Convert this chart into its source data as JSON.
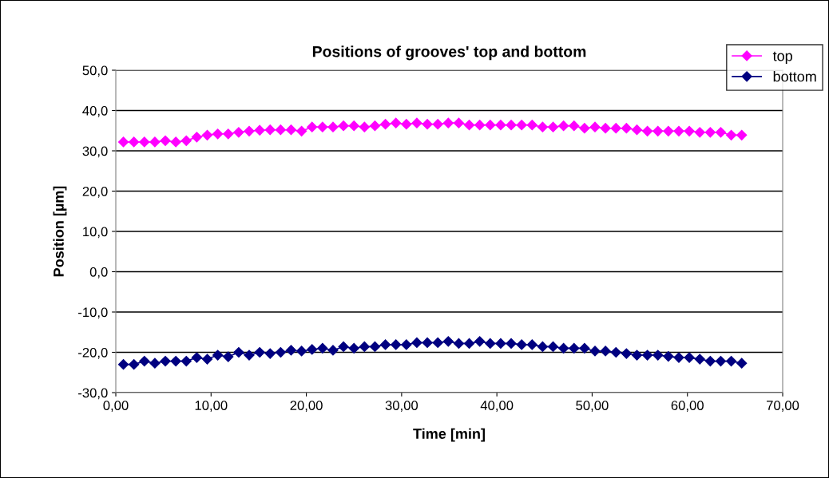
{
  "chart_data": {
    "type": "line",
    "title": "Positions of grooves' top and bottom",
    "xlabel": "Time [min]",
    "ylabel": "Position [µm]",
    "x": [
      0.8,
      1.9,
      3.0,
      4.1,
      5.2,
      6.3,
      7.4,
      8.5,
      9.6,
      10.7,
      11.8,
      12.9,
      14.0,
      15.1,
      16.2,
      17.3,
      18.4,
      19.5,
      20.6,
      21.7,
      22.8,
      23.9,
      25.0,
      26.1,
      27.2,
      28.3,
      29.4,
      30.5,
      31.6,
      32.7,
      33.8,
      34.9,
      36.0,
      37.1,
      38.2,
      39.3,
      40.4,
      41.5,
      42.6,
      43.7,
      44.8,
      45.9,
      47.0,
      48.1,
      49.2,
      50.3,
      51.4,
      52.5,
      53.6,
      54.7,
      55.8,
      56.9,
      58.0,
      59.1,
      60.2,
      61.3,
      62.4,
      63.5,
      64.6,
      65.7
    ],
    "series": [
      {
        "name": "top",
        "color": "#ff00ff",
        "values": [
          32.2,
          32.2,
          32.2,
          32.2,
          32.5,
          32.2,
          32.5,
          33.4,
          33.9,
          34.2,
          34.2,
          34.6,
          34.9,
          35.1,
          35.2,
          35.2,
          35.2,
          34.9,
          35.9,
          35.9,
          35.9,
          36.2,
          36.2,
          35.9,
          36.2,
          36.6,
          36.9,
          36.6,
          36.9,
          36.6,
          36.6,
          36.9,
          36.9,
          36.4,
          36.4,
          36.4,
          36.4,
          36.4,
          36.4,
          36.4,
          35.9,
          35.9,
          36.2,
          36.2,
          35.6,
          35.9,
          35.6,
          35.6,
          35.6,
          35.2,
          34.9,
          34.9,
          34.9,
          34.9,
          34.9,
          34.6,
          34.6,
          34.6,
          33.9,
          33.9
        ]
      },
      {
        "name": "bottom",
        "color": "#000080",
        "values": [
          -23.0,
          -23.0,
          -22.2,
          -22.7,
          -22.2,
          -22.2,
          -22.2,
          -21.3,
          -21.7,
          -20.7,
          -21.1,
          -20.0,
          -20.7,
          -20.0,
          -20.3,
          -20.0,
          -19.5,
          -19.7,
          -19.3,
          -19.0,
          -19.5,
          -18.6,
          -19.0,
          -18.6,
          -18.6,
          -18.1,
          -18.1,
          -18.1,
          -17.6,
          -17.6,
          -17.6,
          -17.3,
          -17.8,
          -17.8,
          -17.3,
          -17.8,
          -17.8,
          -17.8,
          -18.1,
          -18.1,
          -18.6,
          -18.6,
          -19.0,
          -19.0,
          -19.0,
          -19.7,
          -19.7,
          -20.0,
          -20.3,
          -20.7,
          -20.7,
          -20.7,
          -21.0,
          -21.3,
          -21.3,
          -21.7,
          -22.2,
          -22.2,
          -22.2,
          -22.7
        ]
      }
    ],
    "xlim": [
      0,
      70
    ],
    "xticks": [
      {
        "value": 0,
        "label": "0,00"
      },
      {
        "value": 10,
        "label": "10,00"
      },
      {
        "value": 20,
        "label": "20,00"
      },
      {
        "value": 30,
        "label": "30,00"
      },
      {
        "value": 40,
        "label": "40,00"
      },
      {
        "value": 50,
        "label": "50,00"
      },
      {
        "value": 60,
        "label": "60,00"
      },
      {
        "value": 70,
        "label": "70,00"
      }
    ],
    "ylim": [
      -30,
      50
    ],
    "yticks": [
      {
        "value": -30,
        "label": "-30,0"
      },
      {
        "value": -20,
        "label": "-20,0"
      },
      {
        "value": -10,
        "label": "-10,0"
      },
      {
        "value": 0,
        "label": "0,0"
      },
      {
        "value": 10,
        "label": "10,0"
      },
      {
        "value": 20,
        "label": "20,0"
      },
      {
        "value": 30,
        "label": "30,0"
      },
      {
        "value": 40,
        "label": "40,0"
      },
      {
        "value": 50,
        "label": "50,0"
      }
    ],
    "grid": "y",
    "legend": "top right",
    "marker": "diamond",
    "line_style": "solid"
  }
}
